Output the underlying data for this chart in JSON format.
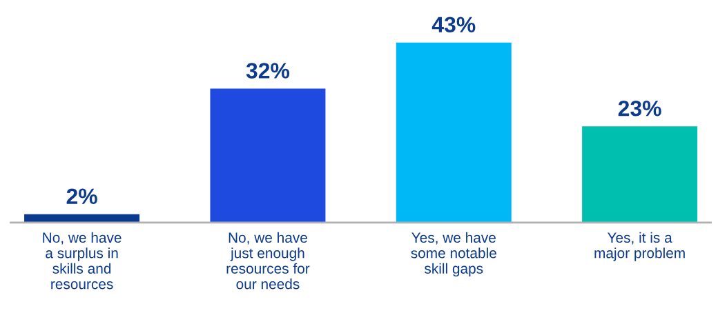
{
  "chart_data": {
    "type": "bar",
    "categories": [
      "No, we have\na surplus in\nskills and\nresources",
      "No, we have\njust enough\nresources for\nour needs",
      "Yes, we have\nsome notable\nskill gaps",
      "Yes, it is a\nmajor problem"
    ],
    "values": [
      2,
      32,
      43,
      23
    ],
    "colors": [
      "#0a3a8f",
      "#1f4ae0",
      "#00b8f5",
      "#00bfae"
    ],
    "value_labels": [
      "2%",
      "32%",
      "43%",
      "23%"
    ],
    "grid": false,
    "legend": false
  }
}
